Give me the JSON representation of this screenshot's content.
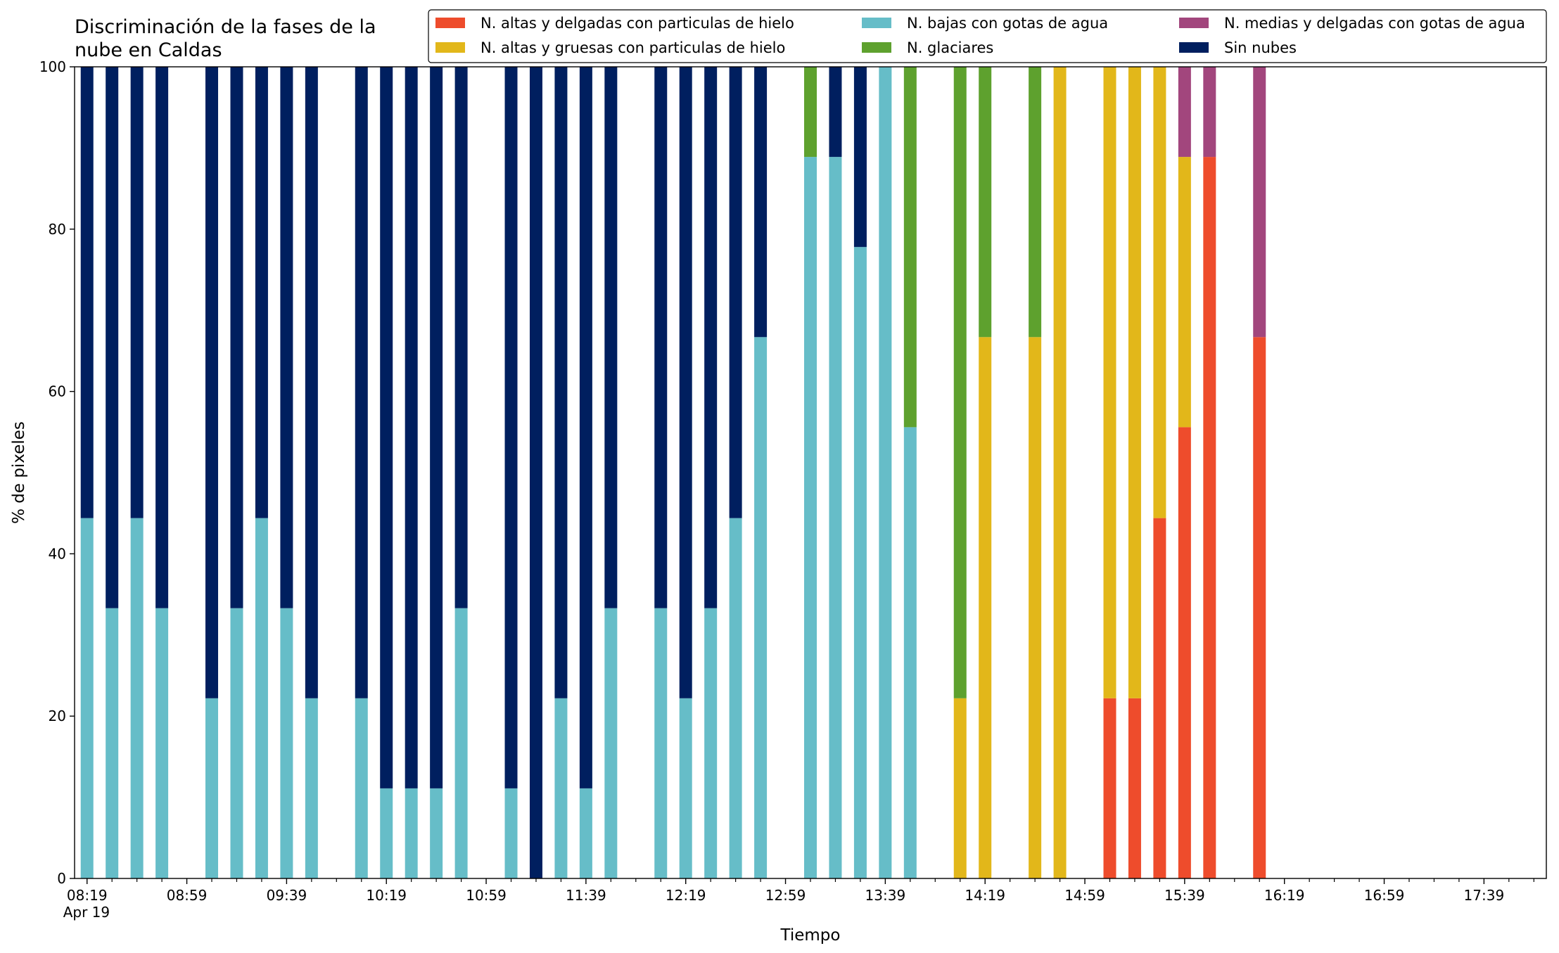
{
  "chart_data": {
    "type": "bar",
    "stacked": true,
    "title": "Discriminación de la fases de la nube en Caldas",
    "xlabel": "Tiempo",
    "ylabel": "% de pixeles",
    "x": [
      "08:19",
      "08:29",
      "08:39",
      "08:49",
      "09:09",
      "09:19",
      "09:29",
      "09:39",
      "09:49",
      "10:09",
      "10:19",
      "10:29",
      "10:39",
      "10:49",
      "11:09",
      "11:19",
      "11:29",
      "11:39",
      "11:49",
      "12:09",
      "12:19",
      "12:29",
      "12:39",
      "12:49",
      "13:09",
      "13:19",
      "13:29",
      "13:39",
      "13:49",
      "14:09",
      "14:19",
      "14:39",
      "14:49",
      "15:09",
      "15:19",
      "15:29",
      "15:39",
      "15:49",
      "16:09"
    ],
    "series": [
      {
        "name": "N. altas y delgadas con particulas de hielo",
        "color": "#ee4c2c",
        "values": [
          0,
          0,
          0,
          0,
          0,
          0,
          0,
          0,
          0,
          0,
          0,
          0,
          0,
          0,
          0,
          0,
          0,
          0,
          0,
          0,
          0,
          0,
          0,
          0,
          0,
          0,
          0,
          0,
          0,
          0,
          0,
          0,
          0,
          22.2,
          22.2,
          44.4,
          55.6,
          88.9,
          66.7
        ]
      },
      {
        "name": "N. altas y gruesas con particulas de hielo",
        "color": "#e2b71a",
        "values": [
          0,
          0,
          0,
          0,
          0,
          0,
          0,
          0,
          0,
          0,
          0,
          0,
          0,
          0,
          0,
          0,
          0,
          0,
          0,
          0,
          0,
          0,
          0,
          0,
          0,
          0,
          0,
          0,
          0,
          22.2,
          66.7,
          66.7,
          100,
          77.8,
          77.8,
          55.6,
          33.3,
          0,
          0
        ]
      },
      {
        "name": "N. bajas con gotas de agua",
        "color": "#66bdc8",
        "values": [
          44.4,
          33.3,
          44.4,
          33.3,
          22.2,
          33.3,
          44.4,
          33.3,
          22.2,
          22.2,
          11.1,
          11.1,
          11.1,
          33.3,
          11.1,
          0,
          22.2,
          11.1,
          33.3,
          33.3,
          22.2,
          33.3,
          44.4,
          66.7,
          88.9,
          88.9,
          77.8,
          100,
          55.6,
          0,
          0,
          0,
          0,
          0,
          0,
          0,
          0,
          0,
          0
        ]
      },
      {
        "name": "N. glaciares",
        "color": "#5ea12e",
        "values": [
          0,
          0,
          0,
          0,
          0,
          0,
          0,
          0,
          0,
          0,
          0,
          0,
          0,
          0,
          0,
          0,
          0,
          0,
          0,
          0,
          0,
          0,
          0,
          0,
          11.1,
          0,
          0,
          0,
          44.4,
          77.8,
          33.3,
          33.3,
          0,
          0,
          0,
          0,
          0,
          0,
          0
        ]
      },
      {
        "name": "N. medias y delgadas con gotas de agua",
        "color": "#a2467d",
        "values": [
          0,
          0,
          0,
          0,
          0,
          0,
          0,
          0,
          0,
          0,
          0,
          0,
          0,
          0,
          0,
          0,
          0,
          0,
          0,
          0,
          0,
          0,
          0,
          0,
          0,
          0,
          0,
          0,
          0,
          0,
          0,
          0,
          0,
          0,
          0,
          0,
          11.1,
          11.1,
          33.3
        ]
      },
      {
        "name": "Sin nubes",
        "color": "#001f5f",
        "values": [
          55.6,
          66.7,
          55.6,
          66.7,
          77.8,
          66.7,
          55.6,
          66.7,
          77.8,
          77.8,
          88.9,
          88.9,
          88.9,
          66.7,
          88.9,
          100,
          77.8,
          88.9,
          66.7,
          66.7,
          77.8,
          66.7,
          55.6,
          33.3,
          0,
          11.1,
          22.2,
          0,
          0,
          0,
          0,
          0,
          0,
          0,
          0,
          0,
          0,
          0,
          0
        ]
      }
    ],
    "xlim": [
      "08:14",
      "18:04"
    ],
    "xticks": [
      "08:19",
      "08:59",
      "09:39",
      "10:19",
      "10:59",
      "11:39",
      "12:19",
      "12:59",
      "13:39",
      "14:19",
      "14:59",
      "15:39",
      "16:19",
      "16:59",
      "17:39"
    ],
    "xtick_sublabel": "Apr 19",
    "xticks_minor": [
      "08:29",
      "08:39",
      "08:49",
      "09:09",
      "09:19",
      "09:29",
      "09:49",
      "09:59",
      "10:09",
      "10:29",
      "10:39",
      "10:49",
      "11:09",
      "11:19",
      "11:29",
      "11:49",
      "11:59",
      "12:09",
      "12:29",
      "12:39",
      "12:49",
      "13:09",
      "13:19",
      "13:29",
      "13:49",
      "13:59",
      "14:09",
      "14:29",
      "14:39",
      "14:49",
      "15:09",
      "15:19",
      "15:29",
      "15:49",
      "15:59",
      "16:09",
      "16:29",
      "16:39",
      "16:49",
      "17:09",
      "17:19",
      "17:29",
      "17:49",
      "17:59"
    ],
    "ylim": [
      0,
      100
    ],
    "yticks": [
      0,
      20,
      40,
      60,
      80,
      100
    ],
    "grid": false,
    "legend": "upper right"
  }
}
